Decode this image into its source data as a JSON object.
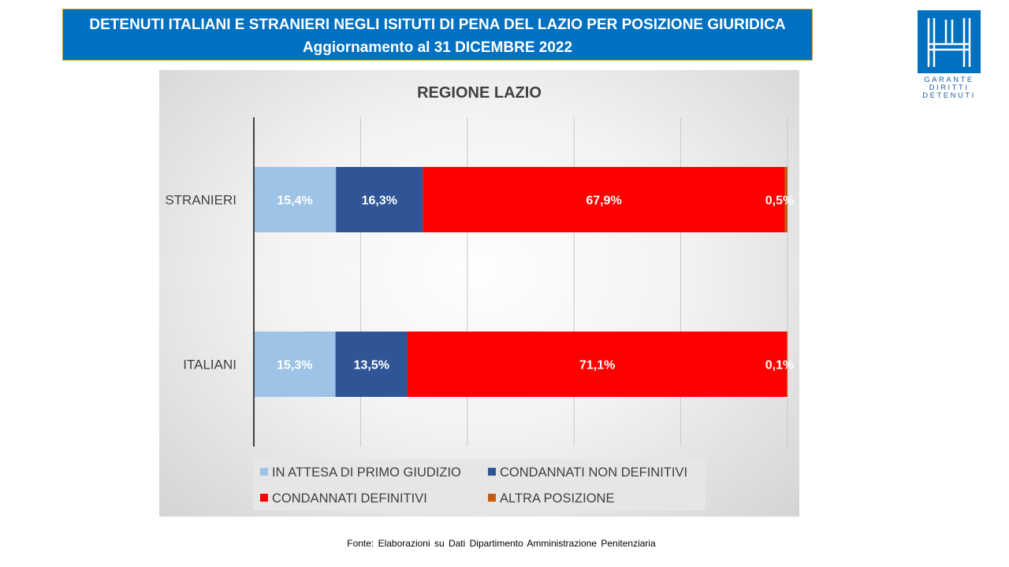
{
  "header": {
    "title_line1": "DETENUTI ITALIANI E STRANIERI NEGLI ISITUTI DI PENA DEL LAZIO PER POSIZIONE GIURIDICA",
    "title_line2": "Aggiornamento al 31 DICEMBRE 2022"
  },
  "logo": {
    "line1": "GARANTE",
    "line2": "DIRITTI",
    "line3": "DETENUTI",
    "color": "#0070c0"
  },
  "footer": {
    "source": "Fonte: Elaborazioni su Dati Dipartimento Amministrazione Penitenziaria"
  },
  "chart_data": {
    "type": "bar",
    "orientation": "horizontal",
    "stacked": "percent",
    "title": "REGIONE LAZIO",
    "categories": [
      "STRANIERI",
      "ITALIANI"
    ],
    "series": [
      {
        "name": "IN ATTESA DI PRIMO GIUDIZIO",
        "color": "#9dc3e6",
        "values": [
          15.4,
          15.3
        ],
        "labels": [
          "15,4%",
          "15,3%"
        ]
      },
      {
        "name": "CONDANNATI NON DEFINITIVI",
        "color": "#2f5597",
        "values": [
          16.3,
          13.5
        ],
        "labels": [
          "16,3%",
          "13,5%"
        ]
      },
      {
        "name": "CONDANNATI DEFINITIVI",
        "color": "#ff0000",
        "values": [
          67.9,
          71.1
        ],
        "labels": [
          "67,9%",
          "71,1%"
        ]
      },
      {
        "name": "ALTRA POSIZIONE",
        "color": "#c55a11",
        "values": [
          0.5,
          0.1
        ],
        "labels": [
          "0,5%",
          "0,1%"
        ]
      }
    ],
    "xlim": [
      0,
      100
    ],
    "grid": true,
    "legend_position": "bottom"
  }
}
